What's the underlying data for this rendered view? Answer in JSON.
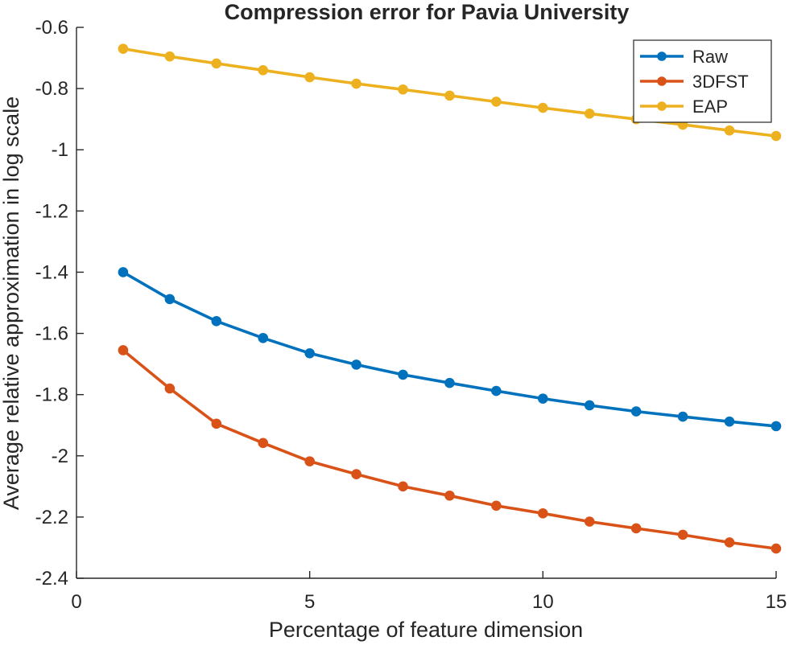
{
  "chart_data": {
    "type": "line",
    "title": "Compression error for Pavia University",
    "xlabel": "Percentage of feature dimension",
    "ylabel": "Average relative approximation in log scale",
    "xlim": [
      0,
      15
    ],
    "ylim": [
      -2.4,
      -0.6
    ],
    "xticks": [
      0,
      5,
      10,
      15
    ],
    "xtick_labels": [
      "0",
      "5",
      "10",
      "15"
    ],
    "yticks": [
      -0.6,
      -0.8,
      -1,
      -1.2,
      -1.4,
      -1.6,
      -1.8,
      -2,
      -2.2,
      -2.4
    ],
    "ytick_labels": [
      "-0.6",
      "-0.8",
      "-1",
      "-1.2",
      "-1.4",
      "-1.6",
      "-1.8",
      "-2",
      "-2.2",
      "-2.4"
    ],
    "grid": false,
    "legend_position": "top-right",
    "x": [
      1,
      2,
      3,
      4,
      5,
      6,
      7,
      8,
      9,
      10,
      11,
      12,
      13,
      14,
      15
    ],
    "series": [
      {
        "name": "Raw",
        "color": "#0072BD",
        "values": [
          -1.4,
          -1.488,
          -1.56,
          -1.615,
          -1.665,
          -1.702,
          -1.735,
          -1.762,
          -1.788,
          -1.813,
          -1.835,
          -1.855,
          -1.872,
          -1.888,
          -1.903
        ]
      },
      {
        "name": "3DFST",
        "color": "#D95319",
        "values": [
          -1.655,
          -1.78,
          -1.895,
          -1.958,
          -2.018,
          -2.06,
          -2.1,
          -2.13,
          -2.163,
          -2.188,
          -2.215,
          -2.237,
          -2.258,
          -2.283,
          -2.303
        ]
      },
      {
        "name": "EAP",
        "color": "#EDB120",
        "values": [
          -0.67,
          -0.695,
          -0.718,
          -0.74,
          -0.763,
          -0.784,
          -0.803,
          -0.823,
          -0.843,
          -0.863,
          -0.882,
          -0.9,
          -0.918,
          -0.937,
          -0.955
        ]
      }
    ]
  }
}
